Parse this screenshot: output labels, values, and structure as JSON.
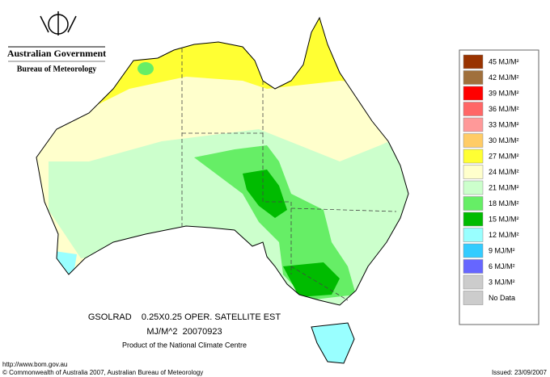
{
  "header": {
    "government": "Australian Government",
    "agency": "Bureau of Meteorology"
  },
  "legend": [
    {
      "label": "45 MJ/M²",
      "color": "#993300"
    },
    {
      "label": "42 MJ/M²",
      "color": "#a0703c"
    },
    {
      "label": "39 MJ/M²",
      "color": "#ff0000"
    },
    {
      "label": "36 MJ/M²",
      "color": "#ff6666"
    },
    {
      "label": "33 MJ/M²",
      "color": "#ff9999"
    },
    {
      "label": "30 MJ/M²",
      "color": "#ffcc66"
    },
    {
      "label": "27 MJ/M²",
      "color": "#ffff33"
    },
    {
      "label": "24 MJ/M²",
      "color": "#ffffcc"
    },
    {
      "label": "21 MJ/M²",
      "color": "#ccffcc"
    },
    {
      "label": "18 MJ/M²",
      "color": "#66ee66"
    },
    {
      "label": "15 MJ/M²",
      "color": "#00bb00"
    },
    {
      "label": "12 MJ/M²",
      "color": "#99ffff"
    },
    {
      "label": "9 MJ/M²",
      "color": "#33ccff"
    },
    {
      "label": "6 MJ/M²",
      "color": "#6666ff"
    },
    {
      "label": "3 MJ/M²",
      "color": "#cccccc"
    },
    {
      "label": "No Data",
      "color": "#cccccc"
    }
  ],
  "caption": {
    "line1": "GSOLRAD    0.25X0.25 OPER. SATELLITE EST",
    "line2": "MJ/M^2  20070923",
    "line3": "Product of the National Climate Centre"
  },
  "footer": {
    "url": "http://www.bom.gov.au",
    "copyright": "© Commonwealth of Australia 2007, Australian Bureau of Meteorology",
    "issued": "Issued: 23/09/2007"
  }
}
